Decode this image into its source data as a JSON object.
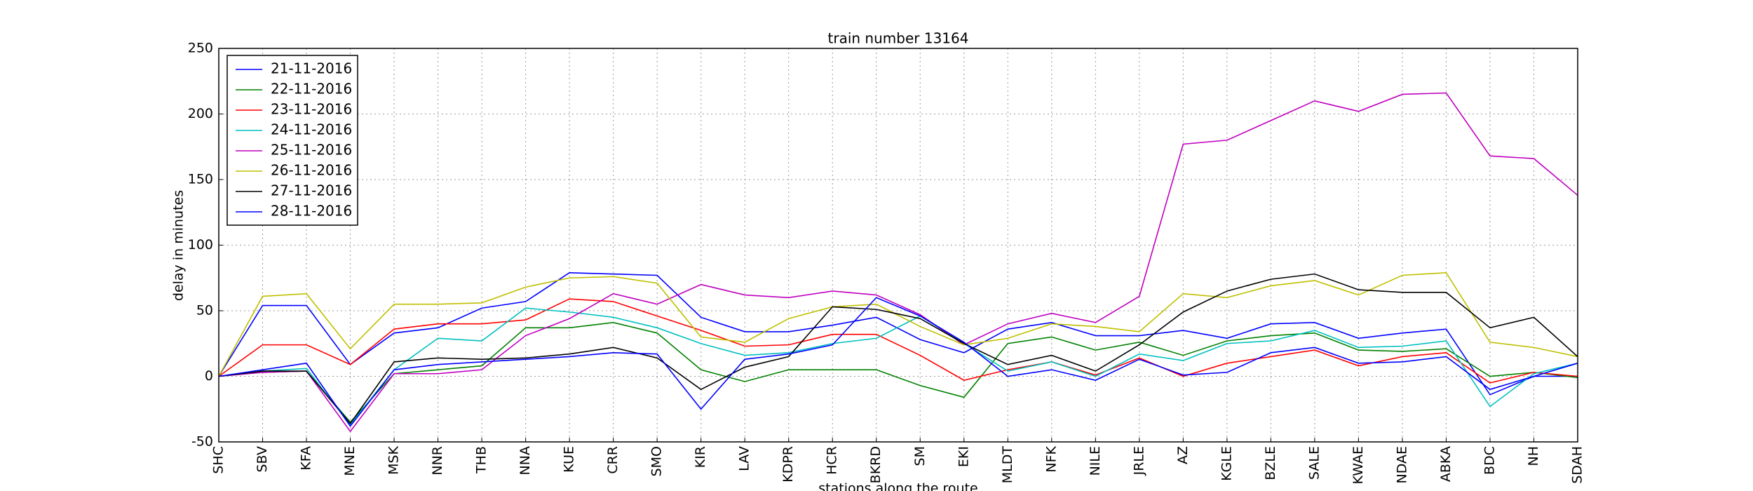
{
  "chart_data": {
    "type": "line",
    "title": "train number 13164",
    "x_label": "stations along the route",
    "y_label": "delay in minutes",
    "categories": [
      "SHC",
      "SBV",
      "KFA",
      "MNE",
      "MSK",
      "NNR",
      "THB",
      "NNA",
      "KUE",
      "CRR",
      "SMO",
      "KIR",
      "LAV",
      "KDPR",
      "HCR",
      "BKRD",
      "SM",
      "EKI",
      "MLDT",
      "NFK",
      "NILE",
      "JRLE",
      "AZ",
      "KGLE",
      "BZLE",
      "SALE",
      "KWAE",
      "NDAE",
      "ABKA",
      "BDC",
      "NH",
      "SDAH"
    ],
    "series": [
      {
        "name": "21-11-2016",
        "color": "#0000ff",
        "values": [
          0,
          54,
          54,
          9,
          33,
          37,
          52,
          57,
          79,
          78,
          77,
          45,
          34,
          34,
          39,
          45,
          28,
          18,
          36,
          41,
          31,
          31,
          35,
          29,
          40,
          41,
          29,
          33,
          36,
          -14,
          0,
          0
        ]
      },
      {
        "name": "22-11-2016",
        "color": "#008000",
        "values": [
          0,
          3,
          4,
          -35,
          2,
          5,
          8,
          37,
          37,
          41,
          33,
          5,
          -4,
          5,
          5,
          5,
          -7,
          -16,
          25,
          30,
          20,
          26,
          16,
          27,
          31,
          33,
          20,
          19,
          21,
          0,
          3,
          -1
        ]
      },
      {
        "name": "23-11-2016",
        "color": "#ff0000",
        "values": [
          0,
          24,
          24,
          9,
          36,
          40,
          40,
          43,
          59,
          57,
          46,
          35,
          23,
          24,
          32,
          32,
          16,
          -3,
          5,
          11,
          1,
          14,
          0,
          10,
          15,
          20,
          8,
          15,
          18,
          -5,
          3,
          0
        ]
      },
      {
        "name": "24-11-2016",
        "color": "#00bfbf",
        "values": [
          0,
          4,
          6,
          -37,
          5,
          29,
          27,
          52,
          49,
          45,
          37,
          25,
          16,
          18,
          25,
          29,
          46,
          25,
          4,
          11,
          0,
          17,
          12,
          25,
          27,
          35,
          22,
          23,
          27,
          -23,
          2,
          10
        ]
      },
      {
        "name": "25-11-2016",
        "color": "#bf00bf",
        "values": [
          0,
          3,
          4,
          -42,
          2,
          2,
          5,
          31,
          44,
          63,
          55,
          70,
          62,
          60,
          65,
          62,
          47,
          24,
          40,
          48,
          41,
          61,
          177,
          180,
          195,
          210,
          202,
          215,
          216,
          168,
          166,
          138
        ]
      },
      {
        "name": "26-11-2016",
        "color": "#bfbf00",
        "values": [
          0,
          61,
          63,
          21,
          55,
          55,
          56,
          68,
          75,
          76,
          71,
          30,
          26,
          44,
          53,
          55,
          38,
          24,
          29,
          40,
          38,
          34,
          63,
          60,
          69,
          73,
          62,
          77,
          79,
          26,
          22,
          15
        ]
      },
      {
        "name": "27-11-2016",
        "color": "#000000",
        "values": [
          0,
          4,
          4,
          -36,
          11,
          14,
          13,
          14,
          17,
          22,
          14,
          -10,
          7,
          15,
          53,
          51,
          44,
          25,
          9,
          16,
          4,
          24,
          49,
          65,
          74,
          78,
          66,
          64,
          64,
          37,
          45,
          15
        ]
      },
      {
        "name": "28-11-2016",
        "color": "#0000ff",
        "values": [
          0,
          5,
          10,
          -38,
          5,
          9,
          11,
          13,
          15,
          18,
          17,
          -25,
          13,
          17,
          24,
          60,
          46,
          26,
          0,
          5,
          -3,
          13,
          1,
          3,
          18,
          22,
          10,
          11,
          15,
          -10,
          0,
          10
        ]
      }
    ],
    "ylim": [
      -50,
      250
    ],
    "yticks": [
      -50,
      0,
      50,
      100,
      150,
      200,
      250
    ],
    "grid": true,
    "legend": "upper-left"
  }
}
